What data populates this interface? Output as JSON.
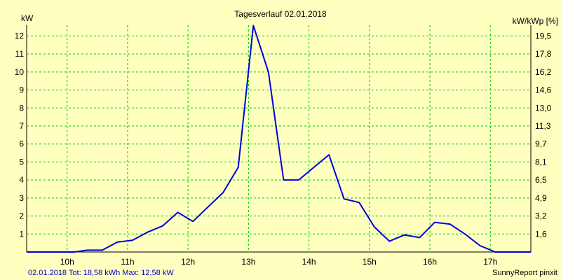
{
  "colors": {
    "background": "#ffffc0",
    "grid": "#00cc00",
    "series": "#0000dd",
    "footer_left": "#0000cc",
    "text": "#000000"
  },
  "footer": {
    "left": "02.01.2018 Tot: 18,58 kWh Max: 12,58 kW",
    "right": "SunnyReport pinxit"
  },
  "chart_data": {
    "type": "line",
    "title": "Tagesverlauf 02.01.2018",
    "ylabel": "kW",
    "ylabel_right": "kW/kWp [%]",
    "x_tick_labels": [
      "10h",
      "11h",
      "12h",
      "13h",
      "14h",
      "15h",
      "16h",
      "17h"
    ],
    "x_ticks_hours": [
      10,
      11,
      12,
      13,
      14,
      15,
      16,
      17
    ],
    "xlim_hours": [
      9.33,
      17.67
    ],
    "ylim": [
      0,
      12.6
    ],
    "y_ticks": [
      1,
      2,
      3,
      4,
      5,
      6,
      7,
      8,
      9,
      10,
      11,
      12
    ],
    "y_tick_labels": [
      "1",
      "2",
      "3",
      "4",
      "5",
      "6",
      "7",
      "8",
      "9",
      "10",
      "11",
      "12"
    ],
    "y2_tick_labels": [
      "1,6",
      "3,2",
      "4,9",
      "6,5",
      "8,1",
      "9,7",
      "11,3",
      "13,0",
      "14,6",
      "16,2",
      "17,8",
      "19,5"
    ],
    "grid": true,
    "series": [
      {
        "x_hours": [
          9.33,
          10.12,
          10.33,
          10.58,
          10.83,
          11.08,
          11.33,
          11.58,
          11.83,
          12.08,
          12.33,
          12.58,
          12.83,
          13.08,
          13.33,
          13.58,
          13.83,
          14.08,
          14.33,
          14.58,
          14.83,
          15.08,
          15.33,
          15.58,
          15.83,
          16.08,
          16.33,
          16.58,
          16.83,
          17.08,
          17.33,
          17.67
        ],
        "values": [
          0,
          0,
          0.1,
          0.1,
          0.55,
          0.65,
          1.1,
          1.45,
          2.2,
          1.7,
          2.5,
          3.3,
          4.7,
          12.58,
          10.0,
          4.0,
          4.0,
          4.7,
          5.4,
          2.95,
          2.75,
          1.4,
          0.6,
          0.95,
          0.8,
          1.65,
          1.55,
          1.0,
          0.35,
          0,
          0,
          0
        ]
      }
    ]
  }
}
